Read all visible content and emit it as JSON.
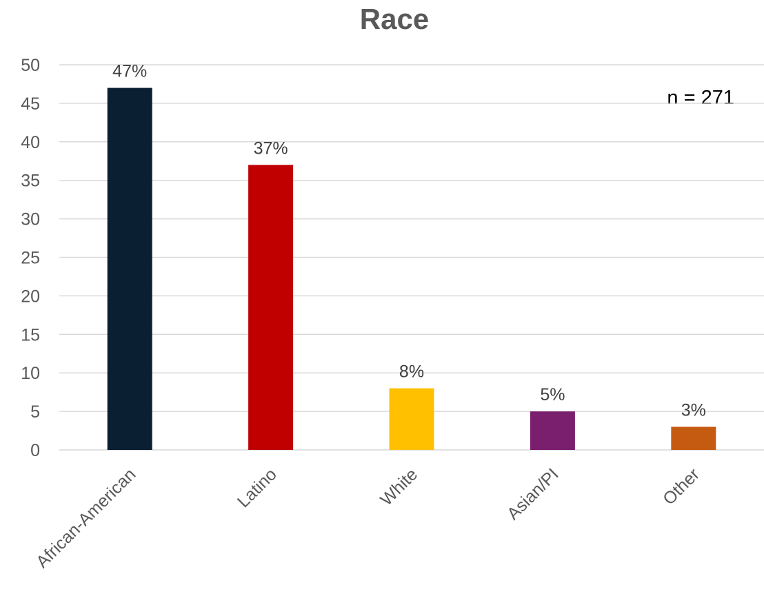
{
  "chart_data": {
    "type": "bar",
    "title": "Race",
    "categories": [
      "African-American",
      "Latino",
      "White",
      "Asian/PI",
      "Other"
    ],
    "values": [
      47,
      37,
      8,
      5,
      3
    ],
    "data_labels": [
      "47%",
      "37%",
      "8%",
      "5%",
      "3%"
    ],
    "colors": [
      "#0b1f33",
      "#c00000",
      "#ffc000",
      "#7a1f6e",
      "#c55a11"
    ],
    "yticks": [
      0,
      5,
      10,
      15,
      20,
      25,
      30,
      35,
      40,
      45,
      50
    ],
    "ylim": [
      0,
      50
    ],
    "grid": true,
    "legend": "none",
    "annotation": "n = 271"
  }
}
